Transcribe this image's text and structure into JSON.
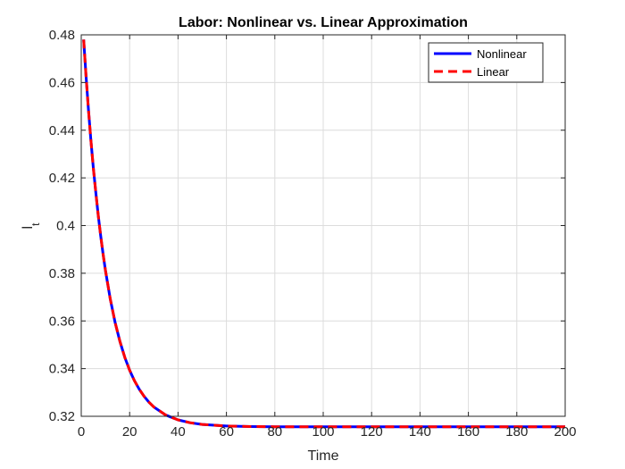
{
  "chart_data": {
    "type": "line",
    "title": "Labor: Nonlinear vs. Linear Approximation",
    "xlabel": "Time",
    "ylabel": "l",
    "ylabel_subscript": "t",
    "xlim": [
      0,
      200
    ],
    "ylim": [
      0.32,
      0.48
    ],
    "xticks": [
      0,
      20,
      40,
      60,
      80,
      100,
      120,
      140,
      160,
      180,
      200
    ],
    "yticks": [
      0.32,
      0.34,
      0.36,
      0.38,
      0.4,
      0.42,
      0.44,
      0.46,
      0.48
    ],
    "grid": true,
    "legend_position": "top-right",
    "x": [
      1,
      2,
      3,
      4,
      5,
      6,
      7,
      8,
      9,
      10,
      12,
      14,
      16,
      18,
      20,
      22,
      24,
      26,
      28,
      30,
      35,
      40,
      45,
      50,
      60,
      70,
      80,
      100,
      120,
      140,
      160,
      180,
      200
    ],
    "series": [
      {
        "name": "Nonlinear",
        "color": "#0000ff",
        "style": "solid",
        "values": [
          0.478,
          0.4625,
          0.4485,
          0.4358,
          0.4243,
          0.4139,
          0.4044,
          0.3959,
          0.3882,
          0.3812,
          0.3692,
          0.3594,
          0.3513,
          0.3447,
          0.3393,
          0.3349,
          0.3313,
          0.3283,
          0.3259,
          0.3239,
          0.3205,
          0.3185,
          0.3173,
          0.3166,
          0.3159,
          0.3157,
          0.3156,
          0.3156,
          0.3156,
          0.3156,
          0.3156,
          0.3156,
          0.3156
        ]
      },
      {
        "name": "Linear",
        "color": "#ff0000",
        "style": "dashed",
        "values": [
          0.478,
          0.4625,
          0.4485,
          0.4358,
          0.4243,
          0.4139,
          0.4044,
          0.3959,
          0.3882,
          0.3812,
          0.3692,
          0.3594,
          0.3513,
          0.3447,
          0.3393,
          0.3349,
          0.3313,
          0.3283,
          0.3259,
          0.3239,
          0.3205,
          0.3185,
          0.3173,
          0.3166,
          0.3159,
          0.3157,
          0.3156,
          0.3156,
          0.3156,
          0.3156,
          0.3156,
          0.3156,
          0.3156
        ]
      }
    ]
  }
}
